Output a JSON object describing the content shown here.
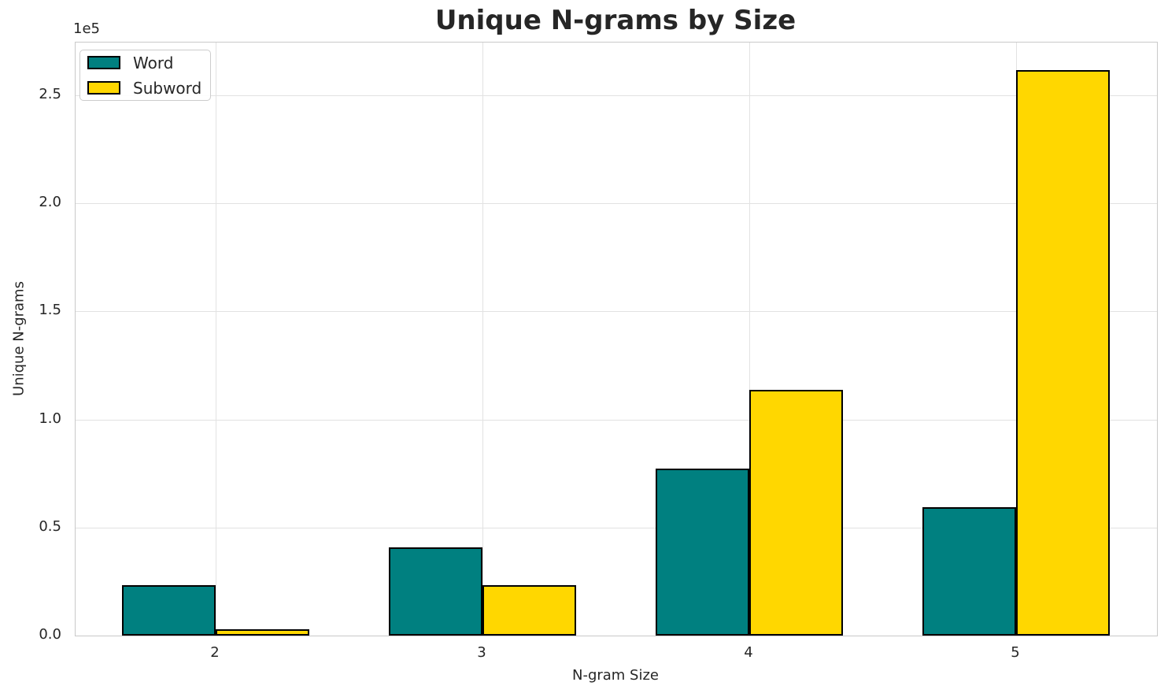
{
  "title": "Unique N-grams by Size",
  "legend": {
    "items": [
      {
        "label": "Word",
        "color": "#008080"
      },
      {
        "label": "Subword",
        "color": "#FFD700"
      }
    ]
  },
  "chart_data": {
    "type": "bar",
    "title": "Unique N-grams by Size",
    "xlabel": "N-gram Size",
    "ylabel": "Unique N-grams",
    "y_offset_text": "1e5",
    "categories": [
      "2",
      "3",
      "4",
      "5"
    ],
    "series": [
      {
        "name": "Word",
        "color": "#008080",
        "values": [
          23300,
          40800,
          77300,
          59400
        ]
      },
      {
        "name": "Subword",
        "color": "#FFD700",
        "values": [
          3000,
          23300,
          113700,
          261700
        ]
      }
    ],
    "bar_edge_color": "#000000",
    "ylim": [
      0,
      274400
    ],
    "y_ticks": [
      {
        "label": "0.0",
        "value": 0
      },
      {
        "label": "0.5",
        "value": 50000
      },
      {
        "label": "1.0",
        "value": 100000
      },
      {
        "label": "1.5",
        "value": 150000
      },
      {
        "label": "2.0",
        "value": 200000
      },
      {
        "label": "2.5",
        "value": 250000
      }
    ],
    "grid": true,
    "legend_position": "upper left"
  }
}
